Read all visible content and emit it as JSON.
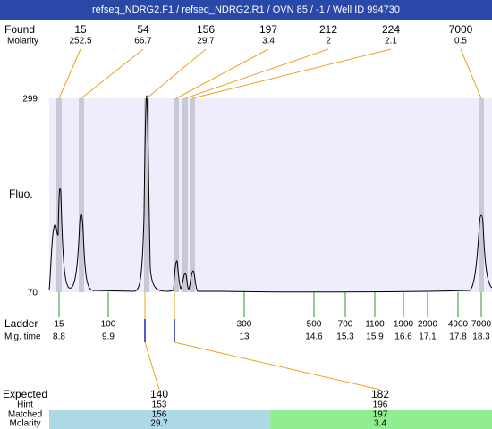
{
  "header": {
    "title": "refseq_NDRG2.F1 / refseq_NDRG2.R1 / OVN 85 / -1 / Well ID 994730"
  },
  "found": {
    "label": "Found",
    "sublabel": "Molarity",
    "items": [
      {
        "size": 15,
        "molarity": 252.5
      },
      {
        "size": 54,
        "molarity": 66.7
      },
      {
        "size": 156,
        "molarity": 29.7
      },
      {
        "size": 197,
        "molarity": 3.4
      },
      {
        "size": 212,
        "molarity": 2
      },
      {
        "size": 224,
        "molarity": 2.1
      },
      {
        "size": 7000,
        "molarity": 0.5
      }
    ]
  },
  "plot": {
    "y_top": 299,
    "y_bottom": 70,
    "y_label": "Fluo."
  },
  "ladder": {
    "label": "Ladder",
    "sublabel": "Mig. time",
    "items": [
      {
        "size": 15,
        "time": 8.8
      },
      {
        "size": 100,
        "time": 9.9
      },
      {
        "size": 300,
        "time": 13
      },
      {
        "size": 500,
        "time": 14.6
      },
      {
        "size": 700,
        "time": 15.3
      },
      {
        "size": 1100,
        "time": 15.9
      },
      {
        "size": 1900,
        "time": 16.6
      },
      {
        "size": 2900,
        "time": 17.1
      },
      {
        "size": 4900,
        "time": 17.8
      },
      {
        "size": 7000,
        "time": 18.3
      }
    ]
  },
  "expected": {
    "labels": [
      "Expected",
      "Hint",
      "Matched",
      "Molarity"
    ],
    "items": [
      {
        "expected": 140,
        "hint": 153,
        "matched": 156,
        "molarity": 29.7
      },
      {
        "expected": 182,
        "hint": 196,
        "matched": 197,
        "molarity": 3.4
      }
    ]
  }
}
